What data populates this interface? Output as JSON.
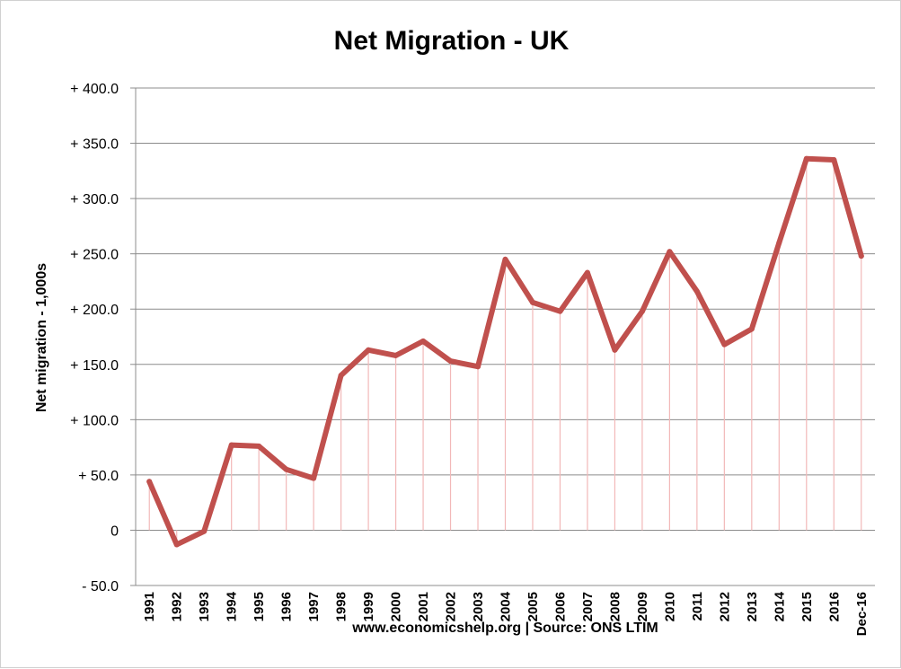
{
  "chart_data": {
    "type": "line",
    "title": "Net Migration - UK",
    "ylabel": "Net migration - 1,000s",
    "xlabel": "www.economicshelp.org | Source: ONS LTIM",
    "categories": [
      "1991",
      "1992",
      "1993",
      "1994",
      "1995",
      "1996",
      "1997",
      "1998",
      "1999",
      "2000",
      "2001",
      "2002",
      "2003",
      "2004",
      "2005",
      "2006",
      "2007",
      "2008",
      "2009",
      "2010",
      "2011",
      "2012",
      "2013",
      "2014",
      "2015",
      "2016",
      "Dec-16"
    ],
    "values": [
      44,
      -13,
      -1,
      77,
      76,
      55,
      47,
      140,
      163,
      158,
      171,
      153,
      148,
      245,
      206,
      198,
      233,
      163,
      198,
      252,
      216,
      168,
      182,
      260,
      336,
      335,
      248
    ],
    "ylim": [
      -50,
      400
    ],
    "yticks": [
      400,
      350,
      300,
      250,
      200,
      150,
      100,
      50,
      0,
      -50
    ],
    "ytick_labels": [
      "+ 400.0",
      "+ 350.0",
      "+ 300.0",
      "+ 250.0",
      "+ 200.0",
      "+ 150.0",
      "+ 100.0",
      "+ 50.0",
      "0",
      "- 50.0"
    ],
    "grid": true,
    "drop_lines": true,
    "colors": {
      "line": "#c0504d",
      "drop_line": "#f2b8b8",
      "grid": "#8c8c8c"
    }
  }
}
